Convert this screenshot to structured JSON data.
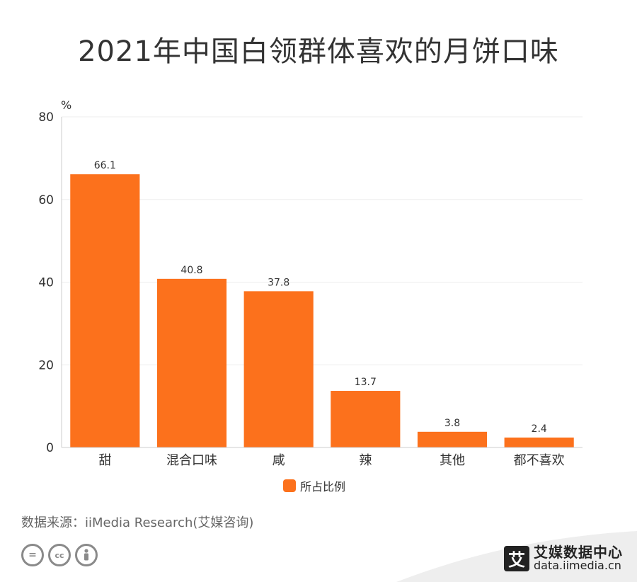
{
  "title": "2021年中国白领群体喜欢的月饼口味",
  "source": "数据来源：iiMedia Research(艾媒咨询)",
  "brand": {
    "name": "艾媒数据中心",
    "url": "data.iimedia.cn",
    "logo_char": "艾"
  },
  "license_icons": [
    "equals-icon",
    "cc-icon",
    "person-icon"
  ],
  "colors": {
    "bar": "#fc711c",
    "grid": "#eeeeee",
    "axis": "#cccccc",
    "text": "#333333"
  },
  "chart_data": {
    "type": "bar",
    "title": "2021年中国白领群体喜欢的月饼口味",
    "ylabel": "%",
    "xlabel": "",
    "ylim": [
      0,
      80
    ],
    "yticks": [
      0,
      20,
      40,
      60,
      80
    ],
    "categories": [
      "甜",
      "混合口味",
      "咸",
      "辣",
      "其他",
      "都不喜欢"
    ],
    "series": [
      {
        "name": "所占比例",
        "values": [
          66.1,
          40.8,
          37.8,
          13.7,
          3.8,
          2.4
        ]
      }
    ],
    "legend": "bottom",
    "grid": true
  }
}
